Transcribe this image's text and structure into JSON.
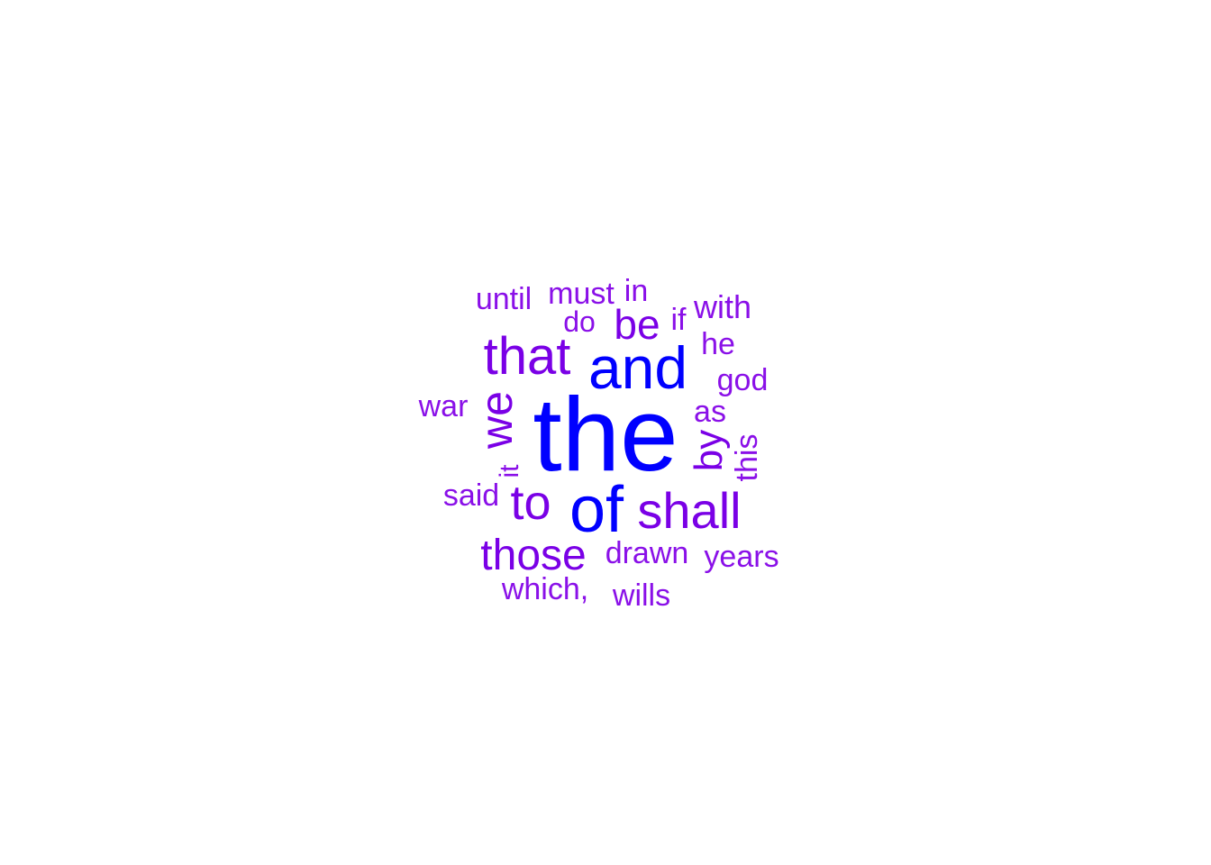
{
  "colors": {
    "top": "#0000ff",
    "mid": "#7a00e6",
    "low": "#8a10e8"
  },
  "words": [
    {
      "text": "the",
      "freq": 10
    },
    {
      "text": "and",
      "freq": 6
    },
    {
      "text": "of",
      "freq": 6
    },
    {
      "text": "that",
      "freq": 4
    },
    {
      "text": "we",
      "freq": 4
    },
    {
      "text": "shall",
      "freq": 4
    },
    {
      "text": "to",
      "freq": 4
    },
    {
      "text": "those",
      "freq": 3
    },
    {
      "text": "be",
      "freq": 3
    },
    {
      "text": "by",
      "freq": 3
    },
    {
      "text": "until",
      "freq": 2
    },
    {
      "text": "must",
      "freq": 2
    },
    {
      "text": "in",
      "freq": 2
    },
    {
      "text": "do",
      "freq": 2
    },
    {
      "text": "if",
      "freq": 2
    },
    {
      "text": "with",
      "freq": 2
    },
    {
      "text": "he",
      "freq": 2
    },
    {
      "text": "god",
      "freq": 2
    },
    {
      "text": "war",
      "freq": 2
    },
    {
      "text": "as",
      "freq": 2
    },
    {
      "text": "this",
      "freq": 2
    },
    {
      "text": "it",
      "freq": 2
    },
    {
      "text": "said",
      "freq": 2
    },
    {
      "text": "drawn",
      "freq": 2
    },
    {
      "text": "years",
      "freq": 2
    },
    {
      "text": "which,",
      "freq": 2
    },
    {
      "text": "wills",
      "freq": 2
    }
  ]
}
